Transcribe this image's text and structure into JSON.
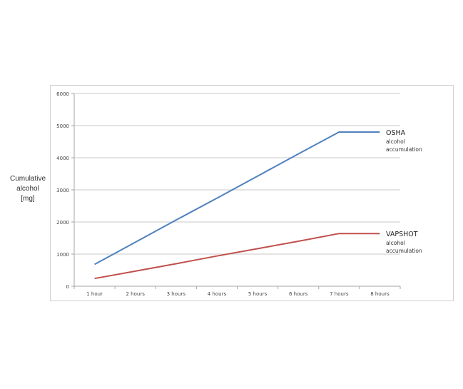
{
  "chart_data": {
    "type": "line",
    "categories": [
      "1 hour",
      "2 hours",
      "3 hours",
      "4 hours",
      "5 hours",
      "6 hours",
      "7 hours",
      "8 hours"
    ],
    "ylabel_lines": [
      "Cumulative",
      "alcohol",
      "[mg]"
    ],
    "ylim": [
      0,
      6000
    ],
    "yticks": [
      "0",
      "1000",
      "2000",
      "3000",
      "4000",
      "5000",
      "6000"
    ],
    "grid": true,
    "series": [
      {
        "name": "OSHA",
        "sublabel": [
          "alcohol",
          "accumulation"
        ],
        "color": "#4f81bd",
        "values": [
          680,
          1370,
          2060,
          2740,
          3430,
          4120,
          4800,
          4800
        ]
      },
      {
        "name": "VAPSHOT",
        "sublabel": [
          "alcohol",
          "accumulation"
        ],
        "color": "#c0504d",
        "values": [
          240,
          470,
          700,
          940,
          1170,
          1400,
          1640,
          1640
        ]
      }
    ]
  }
}
